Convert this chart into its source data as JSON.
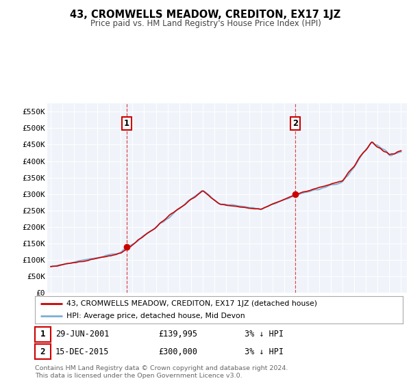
{
  "title": "43, CROMWELLS MEADOW, CREDITON, EX17 1JZ",
  "subtitle": "Price paid vs. HM Land Registry's House Price Index (HPI)",
  "legend_line1": "43, CROMWELLS MEADOW, CREDITON, EX17 1JZ (detached house)",
  "legend_line2": "HPI: Average price, detached house, Mid Devon",
  "transaction1": {
    "num": "1",
    "date": "29-JUN-2001",
    "price": 139995,
    "pct": "3% ↓ HPI"
  },
  "transaction2": {
    "num": "2",
    "date": "15-DEC-2015",
    "price": 300000,
    "pct": "3% ↓ HPI"
  },
  "footnote1": "Contains HM Land Registry data © Crown copyright and database right 2024.",
  "footnote2": "This data is licensed under the Open Government Licence v3.0.",
  "hpi_color": "#7bafd4",
  "price_color": "#cc0000",
  "dashed_color": "#cc0000",
  "background_plot": "#f0f4fa",
  "background_fig": "#ffffff",
  "ylim_max": 575000,
  "xlim_start": 1994.7,
  "xlim_end": 2025.5,
  "t1_year": 2001.495,
  "t2_year": 2015.956,
  "t1_price": 139995,
  "t2_price": 300000
}
